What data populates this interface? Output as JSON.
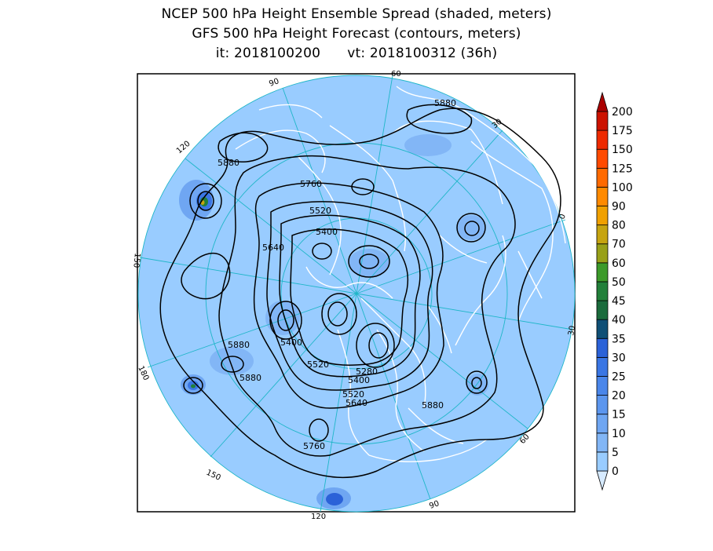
{
  "titles": {
    "line1": "NCEP 500 hPa Height Ensemble Spread (shaded, meters)",
    "line2": "GFS 500 hPa Height Forecast (contours, meters)",
    "init": "it: 2018100200",
    "valid": "vt: 2018100312 (36h)"
  },
  "longitude_labels": [
    "90",
    "60",
    "30",
    "0",
    "30",
    "60",
    "90",
    "120",
    "150",
    "180",
    "150",
    "120"
  ],
  "contour_labels": [
    "5880",
    "5880",
    "5760",
    "5520",
    "5400",
    "5640",
    "5400",
    "5880",
    "5520",
    "5880",
    "5280",
    "5400",
    "5520",
    "5640",
    "5880",
    "5760"
  ],
  "colorbar": {
    "levels": [
      "0",
      "5",
      "10",
      "15",
      "20",
      "25",
      "30",
      "35",
      "40",
      "45",
      "50",
      "60",
      "70",
      "80",
      "90",
      "100",
      "125",
      "150",
      "175",
      "200"
    ],
    "colors": [
      "#99ccff",
      "#82b6f6",
      "#6fa6f2",
      "#5c96ee",
      "#4a86ea",
      "#3a76e4",
      "#2b62d8",
      "#0f4f76",
      "#1a6b3c",
      "#22803a",
      "#3c9a2a",
      "#98a018",
      "#c6a410",
      "#f0a000",
      "#ff8a00",
      "#ff6a00",
      "#ff4a00",
      "#ee2a00",
      "#cc1200",
      "#aa0000"
    ],
    "low_color": "#d6eaff",
    "high_color": "#aa0000"
  }
}
